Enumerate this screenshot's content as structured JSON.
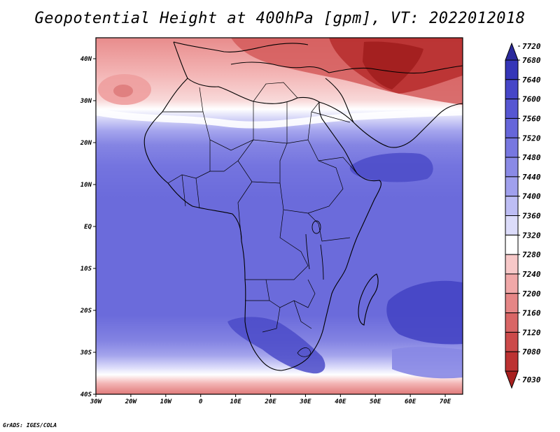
{
  "title": "Geopotential Height at 400hPa [gpm], VT: 2022012018",
  "credit": "GrADS: IGES/COLA",
  "map": {
    "lon_labels": [
      "30W",
      "20W",
      "10W",
      "0",
      "10E",
      "20E",
      "30E",
      "40E",
      "50E",
      "60E",
      "70E"
    ],
    "lat_labels": [
      "40N",
      "30N",
      "20N",
      "10N",
      "EQ",
      "10S",
      "20S",
      "30S",
      "40S"
    ]
  },
  "colorbar": {
    "levels": [
      "7720",
      "7680",
      "7640",
      "7600",
      "7560",
      "7520",
      "7480",
      "7440",
      "7400",
      "7360",
      "7320",
      "7280",
      "7240",
      "7200",
      "7160",
      "7120",
      "7080",
      "7030"
    ],
    "colors": [
      "#2b2a9c",
      "#3536b8",
      "#4646c8",
      "#5656d2",
      "#6666da",
      "#7777e0",
      "#8a8ae6",
      "#a0a0ed",
      "#bdbdf4",
      "#dcdcfa",
      "#ffffff",
      "#f7c8c8",
      "#f0a8a8",
      "#e58686",
      "#d96666",
      "#cc4a4a",
      "#bc3232",
      "#a8201f"
    ]
  },
  "chart_data": {
    "type": "heatmap",
    "title": "Geopotential Height at 400hPa [gpm], VT: 2022012018",
    "variable": "Geopotential Height",
    "level": "400hPa",
    "units": "gpm",
    "valid_time": "2022012018",
    "lon_range": [
      -30,
      75
    ],
    "lat_range": [
      -40,
      45
    ],
    "levels": [
      7030,
      7080,
      7120,
      7160,
      7200,
      7240,
      7280,
      7320,
      7360,
      7400,
      7440,
      7480,
      7520,
      7560,
      7600,
      7640,
      7680,
      7720
    ]
  }
}
